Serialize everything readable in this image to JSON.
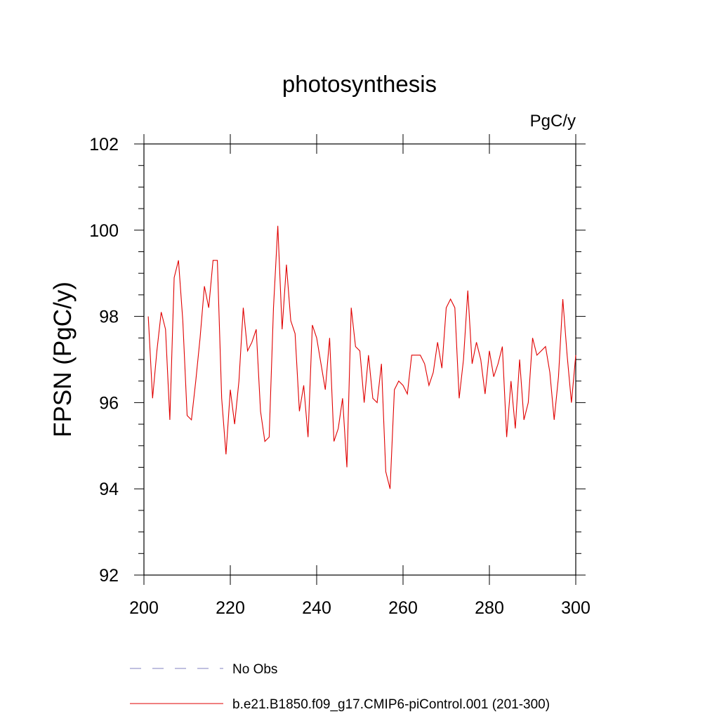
{
  "chart_data": {
    "type": "line",
    "title": "photosynthesis",
    "units_label": "PgC/y",
    "xlabel": "",
    "ylabel": "FPSN  (PgC/y)",
    "xlim": [
      200,
      300
    ],
    "ylim": [
      92,
      102
    ],
    "x_ticks": [
      200,
      220,
      240,
      260,
      280,
      300
    ],
    "y_ticks": [
      92,
      94,
      96,
      98,
      100,
      102
    ],
    "x_minor_step": 5,
    "y_minor_step": 0.5,
    "grid": false,
    "legend_position": "bottom",
    "series": [
      {
        "name": "No Obs",
        "style": "dashed",
        "color": "#8080c0",
        "x": [],
        "y": []
      },
      {
        "name": "b.e21.B1850.f09_g17.CMIP6-piControl.001 (201-300)",
        "style": "solid",
        "color": "#e00000",
        "x": [
          201,
          202,
          203,
          204,
          205,
          206,
          207,
          208,
          209,
          210,
          211,
          212,
          213,
          214,
          215,
          216,
          217,
          218,
          219,
          220,
          221,
          222,
          223,
          224,
          225,
          226,
          227,
          228,
          229,
          230,
          231,
          232,
          233,
          234,
          235,
          236,
          237,
          238,
          239,
          240,
          241,
          242,
          243,
          244,
          245,
          246,
          247,
          248,
          249,
          250,
          251,
          252,
          253,
          254,
          255,
          256,
          257,
          258,
          259,
          260,
          261,
          262,
          263,
          264,
          265,
          266,
          267,
          268,
          269,
          270,
          271,
          272,
          273,
          274,
          275,
          276,
          277,
          278,
          279,
          280,
          281,
          282,
          283,
          284,
          285,
          286,
          287,
          288,
          289,
          290,
          291,
          292,
          293,
          294,
          295,
          296,
          297,
          298,
          299,
          300
        ],
        "y": [
          98.0,
          96.1,
          97.2,
          98.1,
          97.7,
          95.6,
          98.9,
          99.3,
          97.9,
          95.7,
          95.6,
          96.5,
          97.5,
          98.7,
          98.2,
          99.3,
          99.3,
          96.1,
          94.8,
          96.3,
          95.5,
          96.5,
          98.2,
          97.2,
          97.4,
          97.7,
          95.8,
          95.1,
          95.2,
          98.2,
          100.1,
          97.7,
          99.2,
          97.9,
          97.6,
          95.8,
          96.4,
          95.2,
          97.8,
          97.5,
          96.9,
          96.3,
          97.5,
          95.1,
          95.4,
          96.1,
          94.5,
          98.2,
          97.3,
          97.2,
          96.0,
          97.1,
          96.1,
          96.0,
          96.9,
          94.4,
          94.0,
          96.3,
          96.5,
          96.4,
          96.2,
          97.1,
          97.1,
          97.1,
          96.9,
          96.4,
          96.7,
          97.4,
          96.8,
          98.2,
          98.4,
          98.2,
          96.1,
          97.0,
          98.6,
          96.9,
          97.4,
          97.0,
          96.2,
          97.2,
          96.6,
          96.9,
          97.3,
          95.2,
          96.5,
          95.4,
          97.0,
          95.6,
          96.0,
          97.5,
          97.1,
          97.2,
          97.3,
          96.7,
          95.6,
          96.6,
          98.4,
          97.1,
          96.0,
          97.1
        ]
      }
    ]
  }
}
